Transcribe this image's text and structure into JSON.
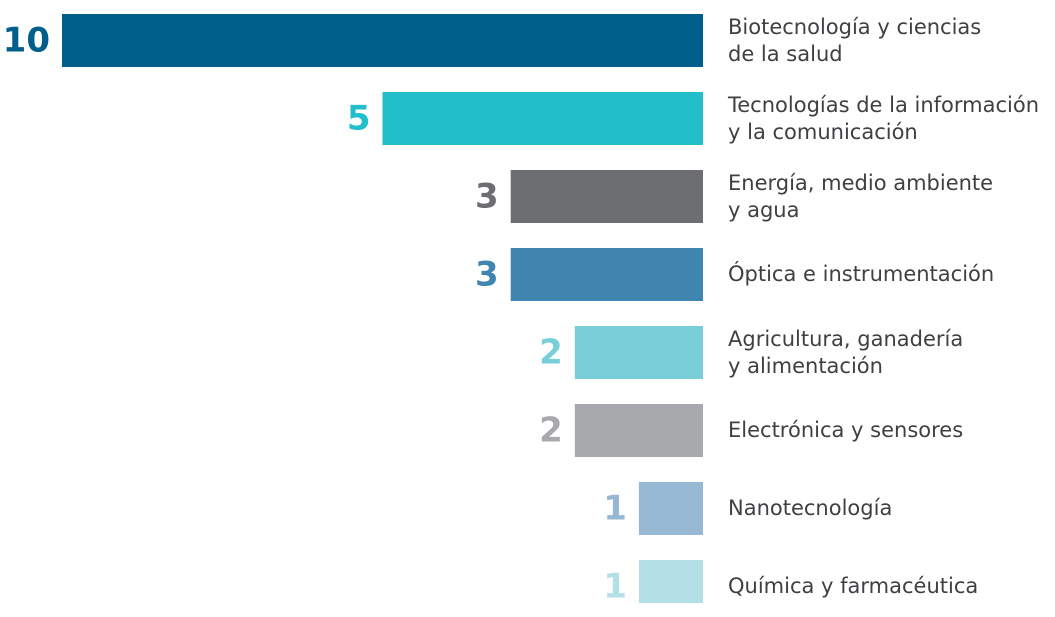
{
  "chart_data": {
    "type": "bar",
    "orientation": "horizontal",
    "categories": [
      "Biotecnología y ciencias\nde la salud",
      "Tecnologías de la información\ny la comunicación",
      "Energía, medio ambiente\ny agua",
      "Óptica e instrumentación",
      "Agricultura, ganadería\ny alimentación",
      "Electrónica y sensores",
      "Nanotecnología",
      "Química y farmacéutica"
    ],
    "values": [
      10,
      5,
      3,
      3,
      2,
      2,
      1,
      1
    ],
    "colors": [
      "#005f8a",
      "#22bfcb",
      "#6d6e72",
      "#3f85b0",
      "#79cfd9",
      "#a7a9ac",
      "#97b8d3",
      "#b2e0e6"
    ]
  }
}
